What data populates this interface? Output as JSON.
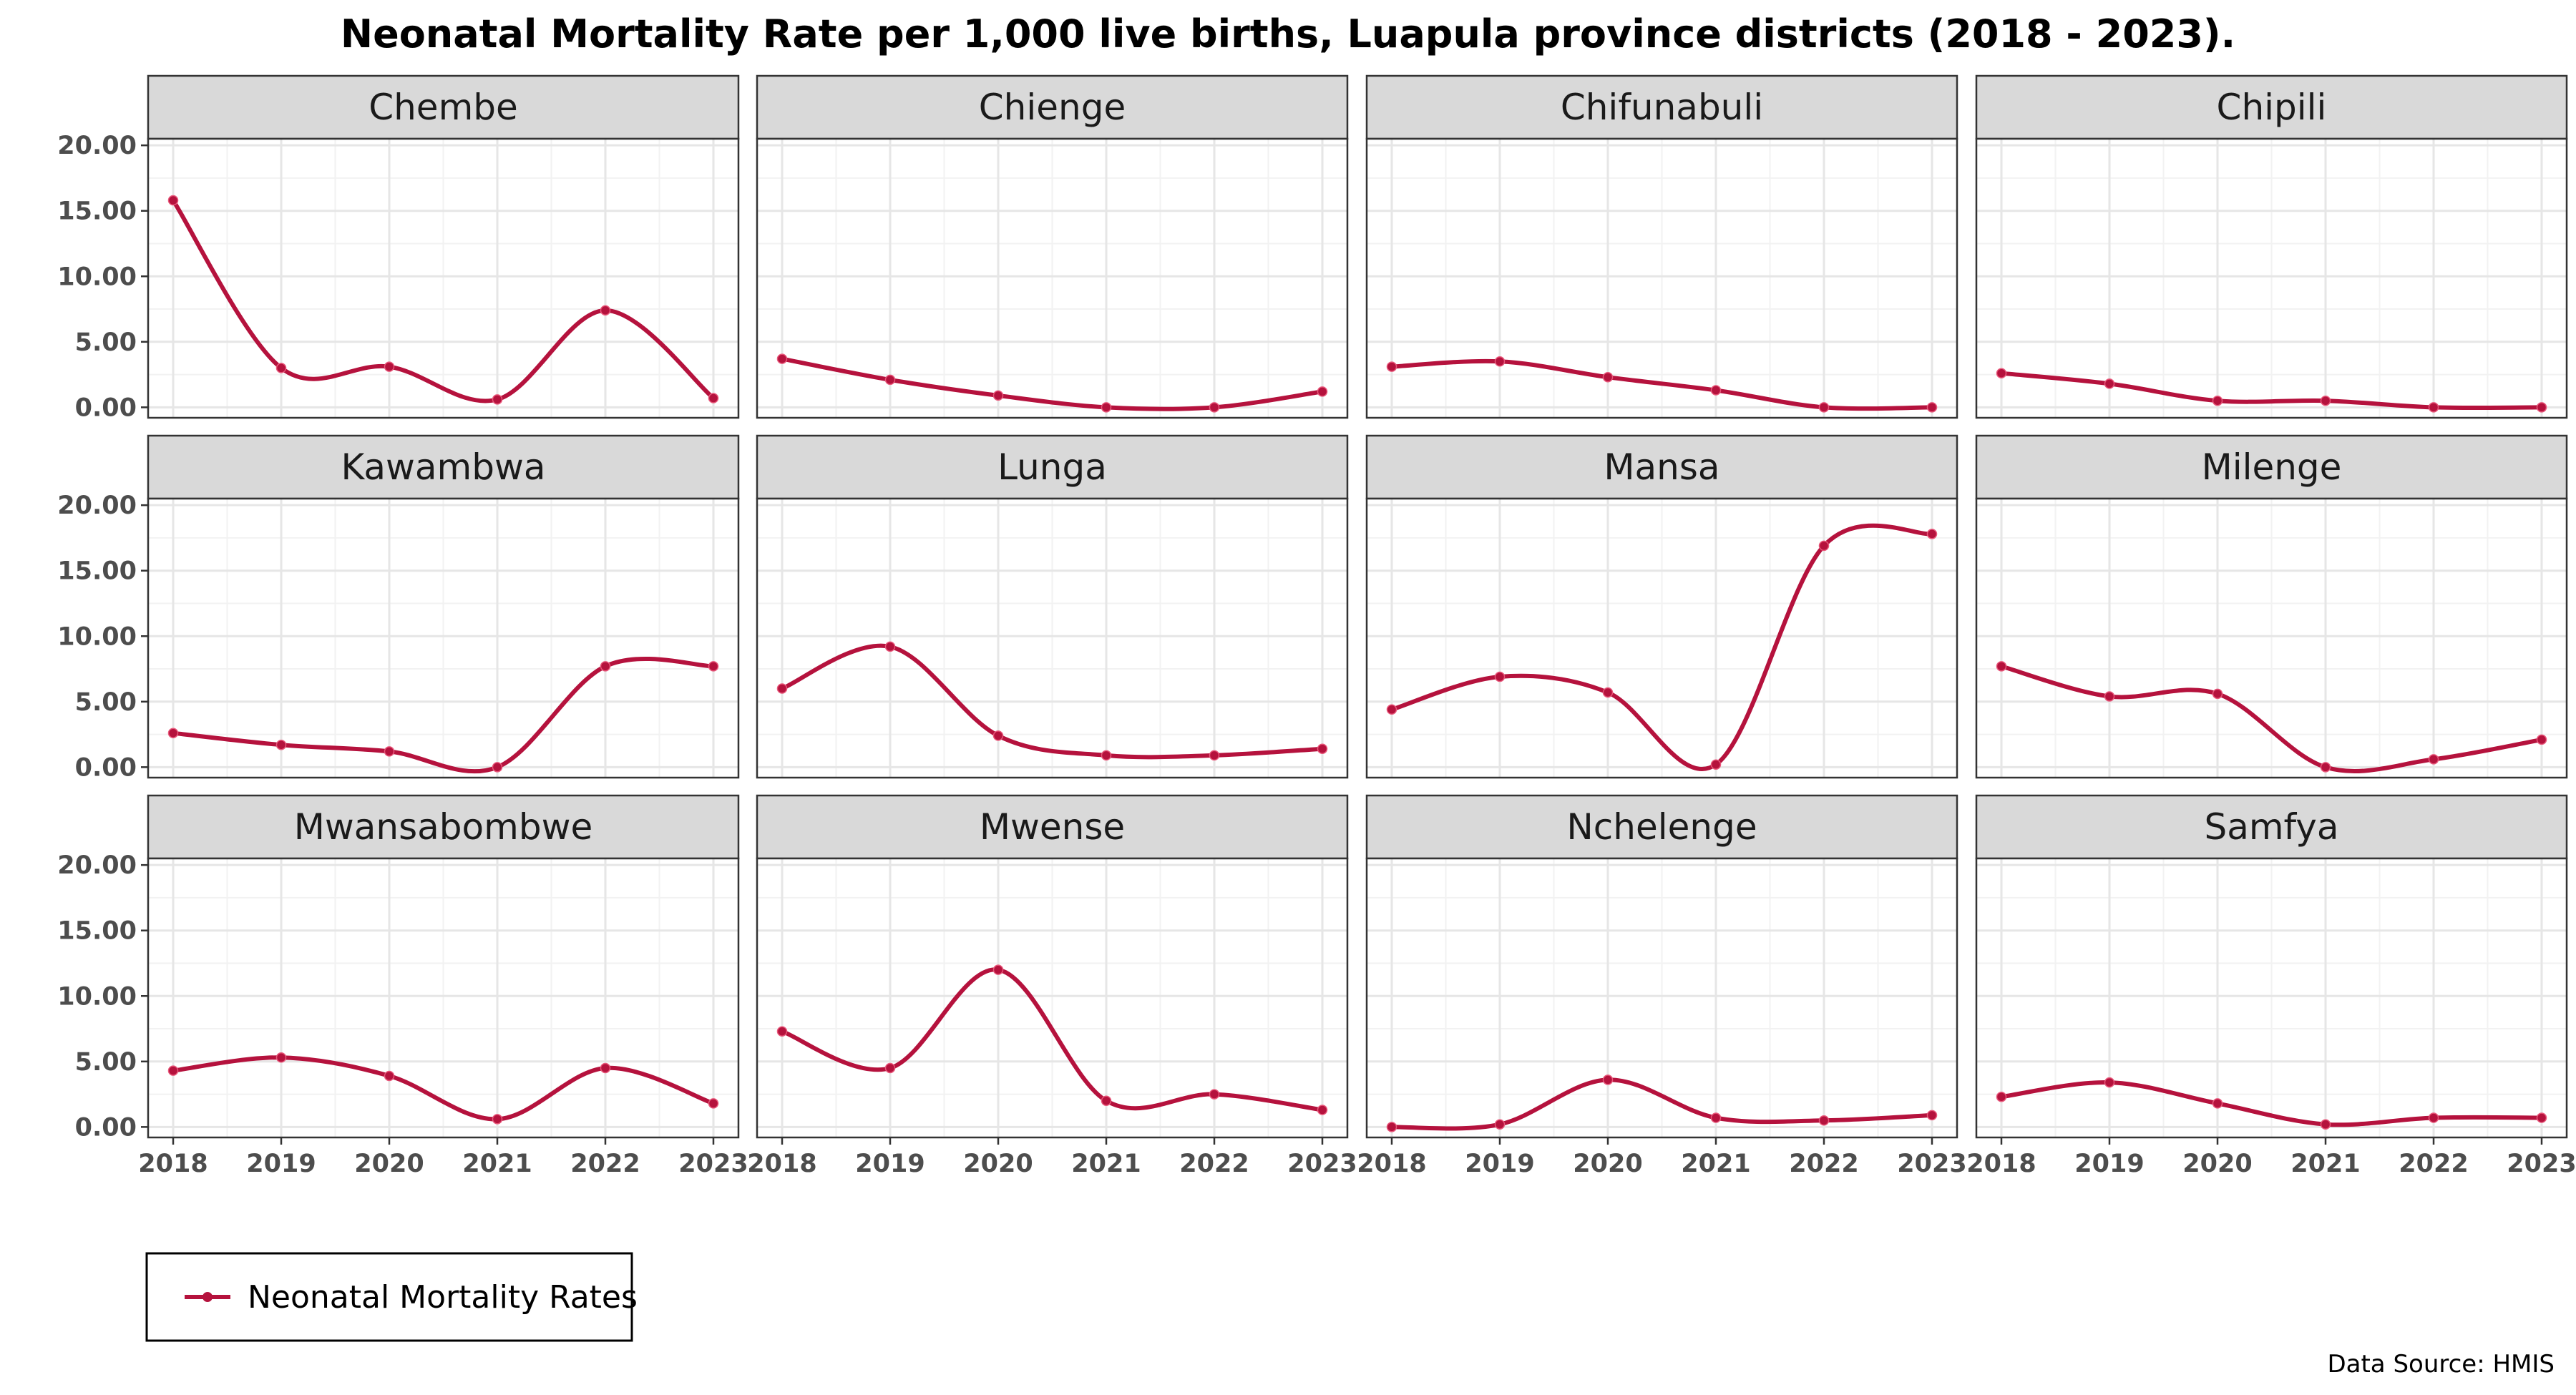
{
  "chart_data": {
    "type": "line",
    "title": "Neonatal Mortality Rate per 1,000 live births, Luapula province districts (2018 - 2023).",
    "x": [
      "2018",
      "2019",
      "2020",
      "2021",
      "2022",
      "2023"
    ],
    "ylim": [
      -0.8,
      20.5
    ],
    "yticks": [
      "0.00",
      "5.00",
      "10.00",
      "15.00",
      "20.00"
    ],
    "grid": true,
    "legend": {
      "label": "Neonatal Mortality Rates",
      "placement": "bottom-left"
    },
    "series_color": "#B5123D",
    "source_note": "Data Source: HMIS",
    "panels": [
      {
        "name": "Chembe",
        "values": [
          15.8,
          3.0,
          3.1,
          0.6,
          7.4,
          0.7
        ]
      },
      {
        "name": "Chienge",
        "values": [
          3.7,
          2.1,
          0.9,
          0.0,
          0.0,
          1.2
        ]
      },
      {
        "name": "Chifunabuli",
        "values": [
          3.1,
          3.5,
          2.3,
          1.3,
          0.0,
          0.0
        ]
      },
      {
        "name": "Chipili",
        "values": [
          2.6,
          1.8,
          0.5,
          0.5,
          0.0,
          0.0
        ]
      },
      {
        "name": "Kawambwa",
        "values": [
          2.6,
          1.7,
          1.2,
          0.0,
          7.7,
          7.7
        ]
      },
      {
        "name": "Lunga",
        "values": [
          6.0,
          9.2,
          2.4,
          0.9,
          0.9,
          1.4
        ]
      },
      {
        "name": "Mansa",
        "values": [
          4.4,
          6.9,
          5.7,
          0.2,
          16.9,
          17.8
        ]
      },
      {
        "name": "Milenge",
        "values": [
          7.7,
          5.4,
          5.6,
          0.0,
          0.6,
          2.1
        ]
      },
      {
        "name": "Mwansabombwe",
        "values": [
          4.3,
          5.3,
          3.9,
          0.6,
          4.5,
          1.8
        ]
      },
      {
        "name": "Mwense",
        "values": [
          7.3,
          4.5,
          12.0,
          2.0,
          2.5,
          1.3
        ]
      },
      {
        "name": "Nchelenge",
        "values": [
          0.0,
          0.2,
          3.6,
          0.7,
          0.5,
          0.9
        ]
      },
      {
        "name": "Samfya",
        "values": [
          2.3,
          3.4,
          1.8,
          0.2,
          0.7,
          0.7
        ]
      }
    ]
  }
}
